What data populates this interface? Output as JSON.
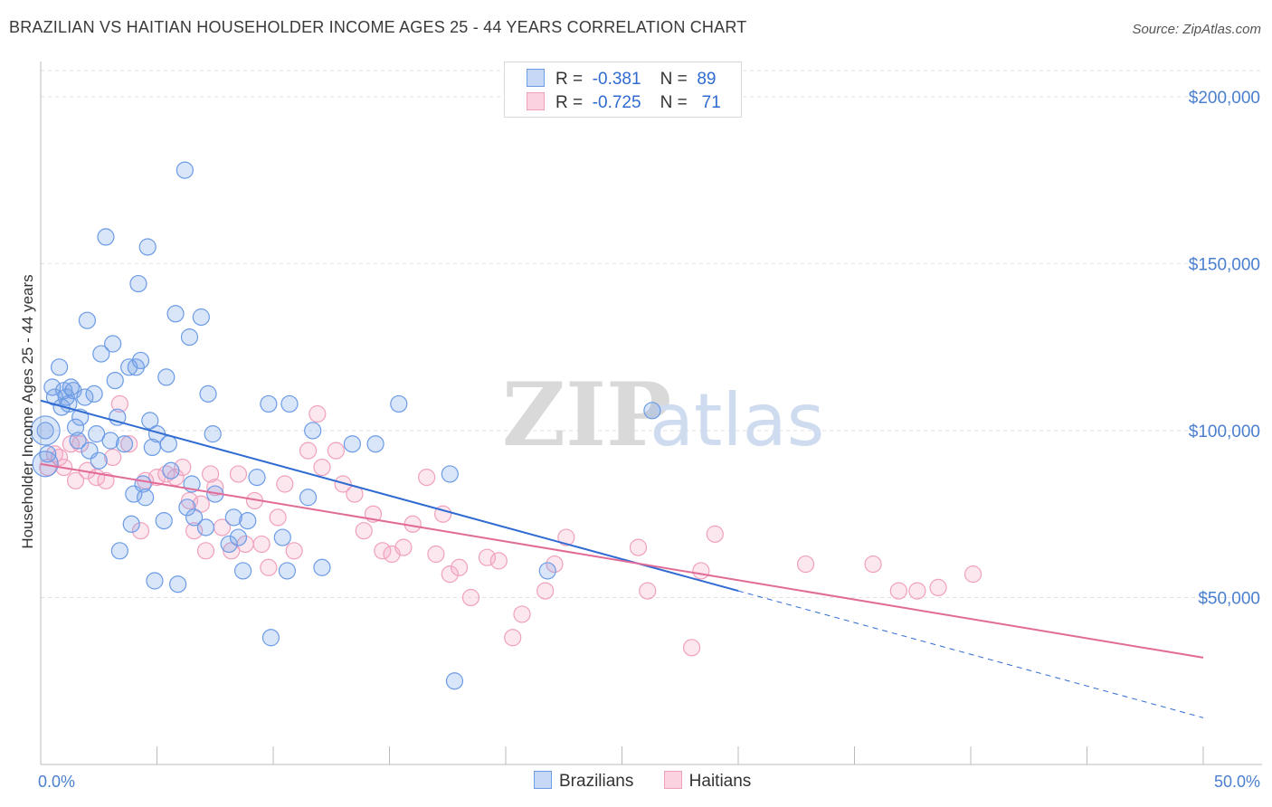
{
  "title": "BRAZILIAN VS HAITIAN HOUSEHOLDER INCOME AGES 25 - 44 YEARS CORRELATION CHART",
  "source": "Source: ZipAtlas.com",
  "watermark": {
    "part1": "ZIP",
    "part2": "atlas"
  },
  "legend_top": [
    {
      "r_label": "R =",
      "r_value": "-0.381",
      "n_label": "N =",
      "n_value": "89",
      "color": "#6b9be6"
    },
    {
      "r_label": "R =",
      "r_value": "-0.725",
      "n_label": "N =",
      "n_value": "71",
      "color": "#f0a0bc"
    }
  ],
  "legend_bottom": [
    {
      "label": "Brazilians",
      "color": "#6b9be6"
    },
    {
      "label": "Haitians",
      "color": "#f0a0bc"
    }
  ],
  "chart_data": {
    "type": "scatter",
    "title": "BRAZILIAN VS HAITIAN HOUSEHOLDER INCOME AGES 25 - 44 YEARS CORRELATION CHART",
    "xlabel": "",
    "ylabel": "Householder Income Ages 25 - 44 years",
    "xlim": [
      0,
      50
    ],
    "ylim": [
      0,
      210000
    ],
    "x_tick_labels": [
      "0.0%",
      "50.0%"
    ],
    "y_ticks": [
      50000,
      100000,
      150000,
      200000
    ],
    "y_tick_labels": [
      "$50,000",
      "$100,000",
      "$150,000",
      "$200,000"
    ],
    "grid": true,
    "legend": "top-center",
    "series": [
      {
        "name": "Brazilians",
        "color": "#6b9be6",
        "trend": {
          "x0": 0,
          "y0": 109000,
          "x1": 30,
          "y1": 52000,
          "dash_to_x": 50,
          "dash_to_y": 14000
        },
        "points": [
          [
            0.2,
            100000
          ],
          [
            0.3,
            93000
          ],
          [
            0.5,
            113000
          ],
          [
            0.6,
            110000
          ],
          [
            0.8,
            119000
          ],
          [
            0.9,
            107000
          ],
          [
            1.0,
            112000
          ],
          [
            1.1,
            110000
          ],
          [
            1.2,
            108000
          ],
          [
            1.3,
            113000
          ],
          [
            1.4,
            112000
          ],
          [
            1.5,
            101000
          ],
          [
            1.6,
            97000
          ],
          [
            1.7,
            104000
          ],
          [
            1.9,
            110000
          ],
          [
            2.0,
            133000
          ],
          [
            2.1,
            94000
          ],
          [
            2.3,
            111000
          ],
          [
            2.4,
            99000
          ],
          [
            2.5,
            91000
          ],
          [
            2.6,
            123000
          ],
          [
            2.8,
            158000
          ],
          [
            3.0,
            97000
          ],
          [
            3.1,
            126000
          ],
          [
            3.2,
            115000
          ],
          [
            3.3,
            104000
          ],
          [
            3.4,
            64000
          ],
          [
            3.6,
            96000
          ],
          [
            3.8,
            119000
          ],
          [
            3.9,
            72000
          ],
          [
            4.0,
            81000
          ],
          [
            4.1,
            119000
          ],
          [
            4.2,
            144000
          ],
          [
            4.3,
            121000
          ],
          [
            4.4,
            84000
          ],
          [
            4.5,
            80000
          ],
          [
            4.6,
            155000
          ],
          [
            4.7,
            103000
          ],
          [
            4.8,
            95000
          ],
          [
            4.9,
            55000
          ],
          [
            5.0,
            99000
          ],
          [
            5.3,
            73000
          ],
          [
            5.4,
            116000
          ],
          [
            5.5,
            96000
          ],
          [
            5.6,
            88000
          ],
          [
            5.8,
            135000
          ],
          [
            5.9,
            54000
          ],
          [
            6.2,
            178000
          ],
          [
            6.3,
            77000
          ],
          [
            6.4,
            128000
          ],
          [
            6.5,
            84000
          ],
          [
            6.6,
            74000
          ],
          [
            6.9,
            134000
          ],
          [
            7.1,
            71000
          ],
          [
            7.2,
            111000
          ],
          [
            7.4,
            99000
          ],
          [
            7.5,
            81000
          ],
          [
            8.1,
            66000
          ],
          [
            8.3,
            74000
          ],
          [
            8.5,
            68000
          ],
          [
            8.7,
            58000
          ],
          [
            8.9,
            73000
          ],
          [
            9.3,
            86000
          ],
          [
            9.8,
            108000
          ],
          [
            9.9,
            38000
          ],
          [
            10.4,
            68000
          ],
          [
            10.6,
            58000
          ],
          [
            10.7,
            108000
          ],
          [
            11.5,
            80000
          ],
          [
            11.7,
            100000
          ],
          [
            12.1,
            59000
          ],
          [
            13.4,
            96000
          ],
          [
            14.4,
            96000
          ],
          [
            15.4,
            108000
          ],
          [
            17.6,
            87000
          ],
          [
            17.8,
            25000
          ],
          [
            21.8,
            58000
          ],
          [
            26.3,
            106000
          ]
        ]
      },
      {
        "name": "Haitians",
        "color": "#f0a0bc",
        "trend": {
          "x0": 0,
          "y0": 90000,
          "x1": 50,
          "y1": 32000
        },
        "points": [
          [
            0.3,
            89000
          ],
          [
            0.6,
            93000
          ],
          [
            0.8,
            92000
          ],
          [
            1.0,
            89000
          ],
          [
            1.3,
            96000
          ],
          [
            1.5,
            85000
          ],
          [
            1.7,
            96000
          ],
          [
            2.0,
            88000
          ],
          [
            2.4,
            86000
          ],
          [
            2.8,
            85000
          ],
          [
            3.1,
            92000
          ],
          [
            3.4,
            108000
          ],
          [
            3.8,
            96000
          ],
          [
            4.3,
            70000
          ],
          [
            4.5,
            85000
          ],
          [
            5.0,
            86000
          ],
          [
            5.4,
            87000
          ],
          [
            5.8,
            86000
          ],
          [
            6.1,
            89000
          ],
          [
            6.4,
            79000
          ],
          [
            6.6,
            70000
          ],
          [
            6.9,
            78000
          ],
          [
            7.1,
            64000
          ],
          [
            7.3,
            87000
          ],
          [
            7.5,
            83000
          ],
          [
            7.8,
            71000
          ],
          [
            8.2,
            64000
          ],
          [
            8.5,
            87000
          ],
          [
            8.8,
            66000
          ],
          [
            9.2,
            79000
          ],
          [
            9.5,
            66000
          ],
          [
            9.8,
            59000
          ],
          [
            10.2,
            74000
          ],
          [
            10.5,
            84000
          ],
          [
            10.9,
            64000
          ],
          [
            11.5,
            94000
          ],
          [
            11.9,
            105000
          ],
          [
            12.1,
            89000
          ],
          [
            12.7,
            94000
          ],
          [
            13.0,
            84000
          ],
          [
            13.5,
            81000
          ],
          [
            13.9,
            70000
          ],
          [
            14.3,
            75000
          ],
          [
            14.7,
            64000
          ],
          [
            15.1,
            63000
          ],
          [
            15.6,
            65000
          ],
          [
            16.0,
            72000
          ],
          [
            16.6,
            86000
          ],
          [
            17.0,
            63000
          ],
          [
            17.3,
            75000
          ],
          [
            17.6,
            57000
          ],
          [
            18.0,
            59000
          ],
          [
            18.5,
            50000
          ],
          [
            19.2,
            62000
          ],
          [
            19.7,
            61000
          ],
          [
            20.3,
            38000
          ],
          [
            20.7,
            45000
          ],
          [
            21.7,
            52000
          ],
          [
            22.1,
            60000
          ],
          [
            22.6,
            68000
          ],
          [
            25.7,
            65000
          ],
          [
            26.1,
            52000
          ],
          [
            28.0,
            35000
          ],
          [
            28.4,
            58000
          ],
          [
            29.0,
            69000
          ],
          [
            32.9,
            60000
          ],
          [
            35.8,
            60000
          ],
          [
            36.9,
            52000
          ],
          [
            37.7,
            52000
          ],
          [
            38.6,
            53000
          ],
          [
            40.1,
            57000
          ]
        ]
      }
    ]
  }
}
